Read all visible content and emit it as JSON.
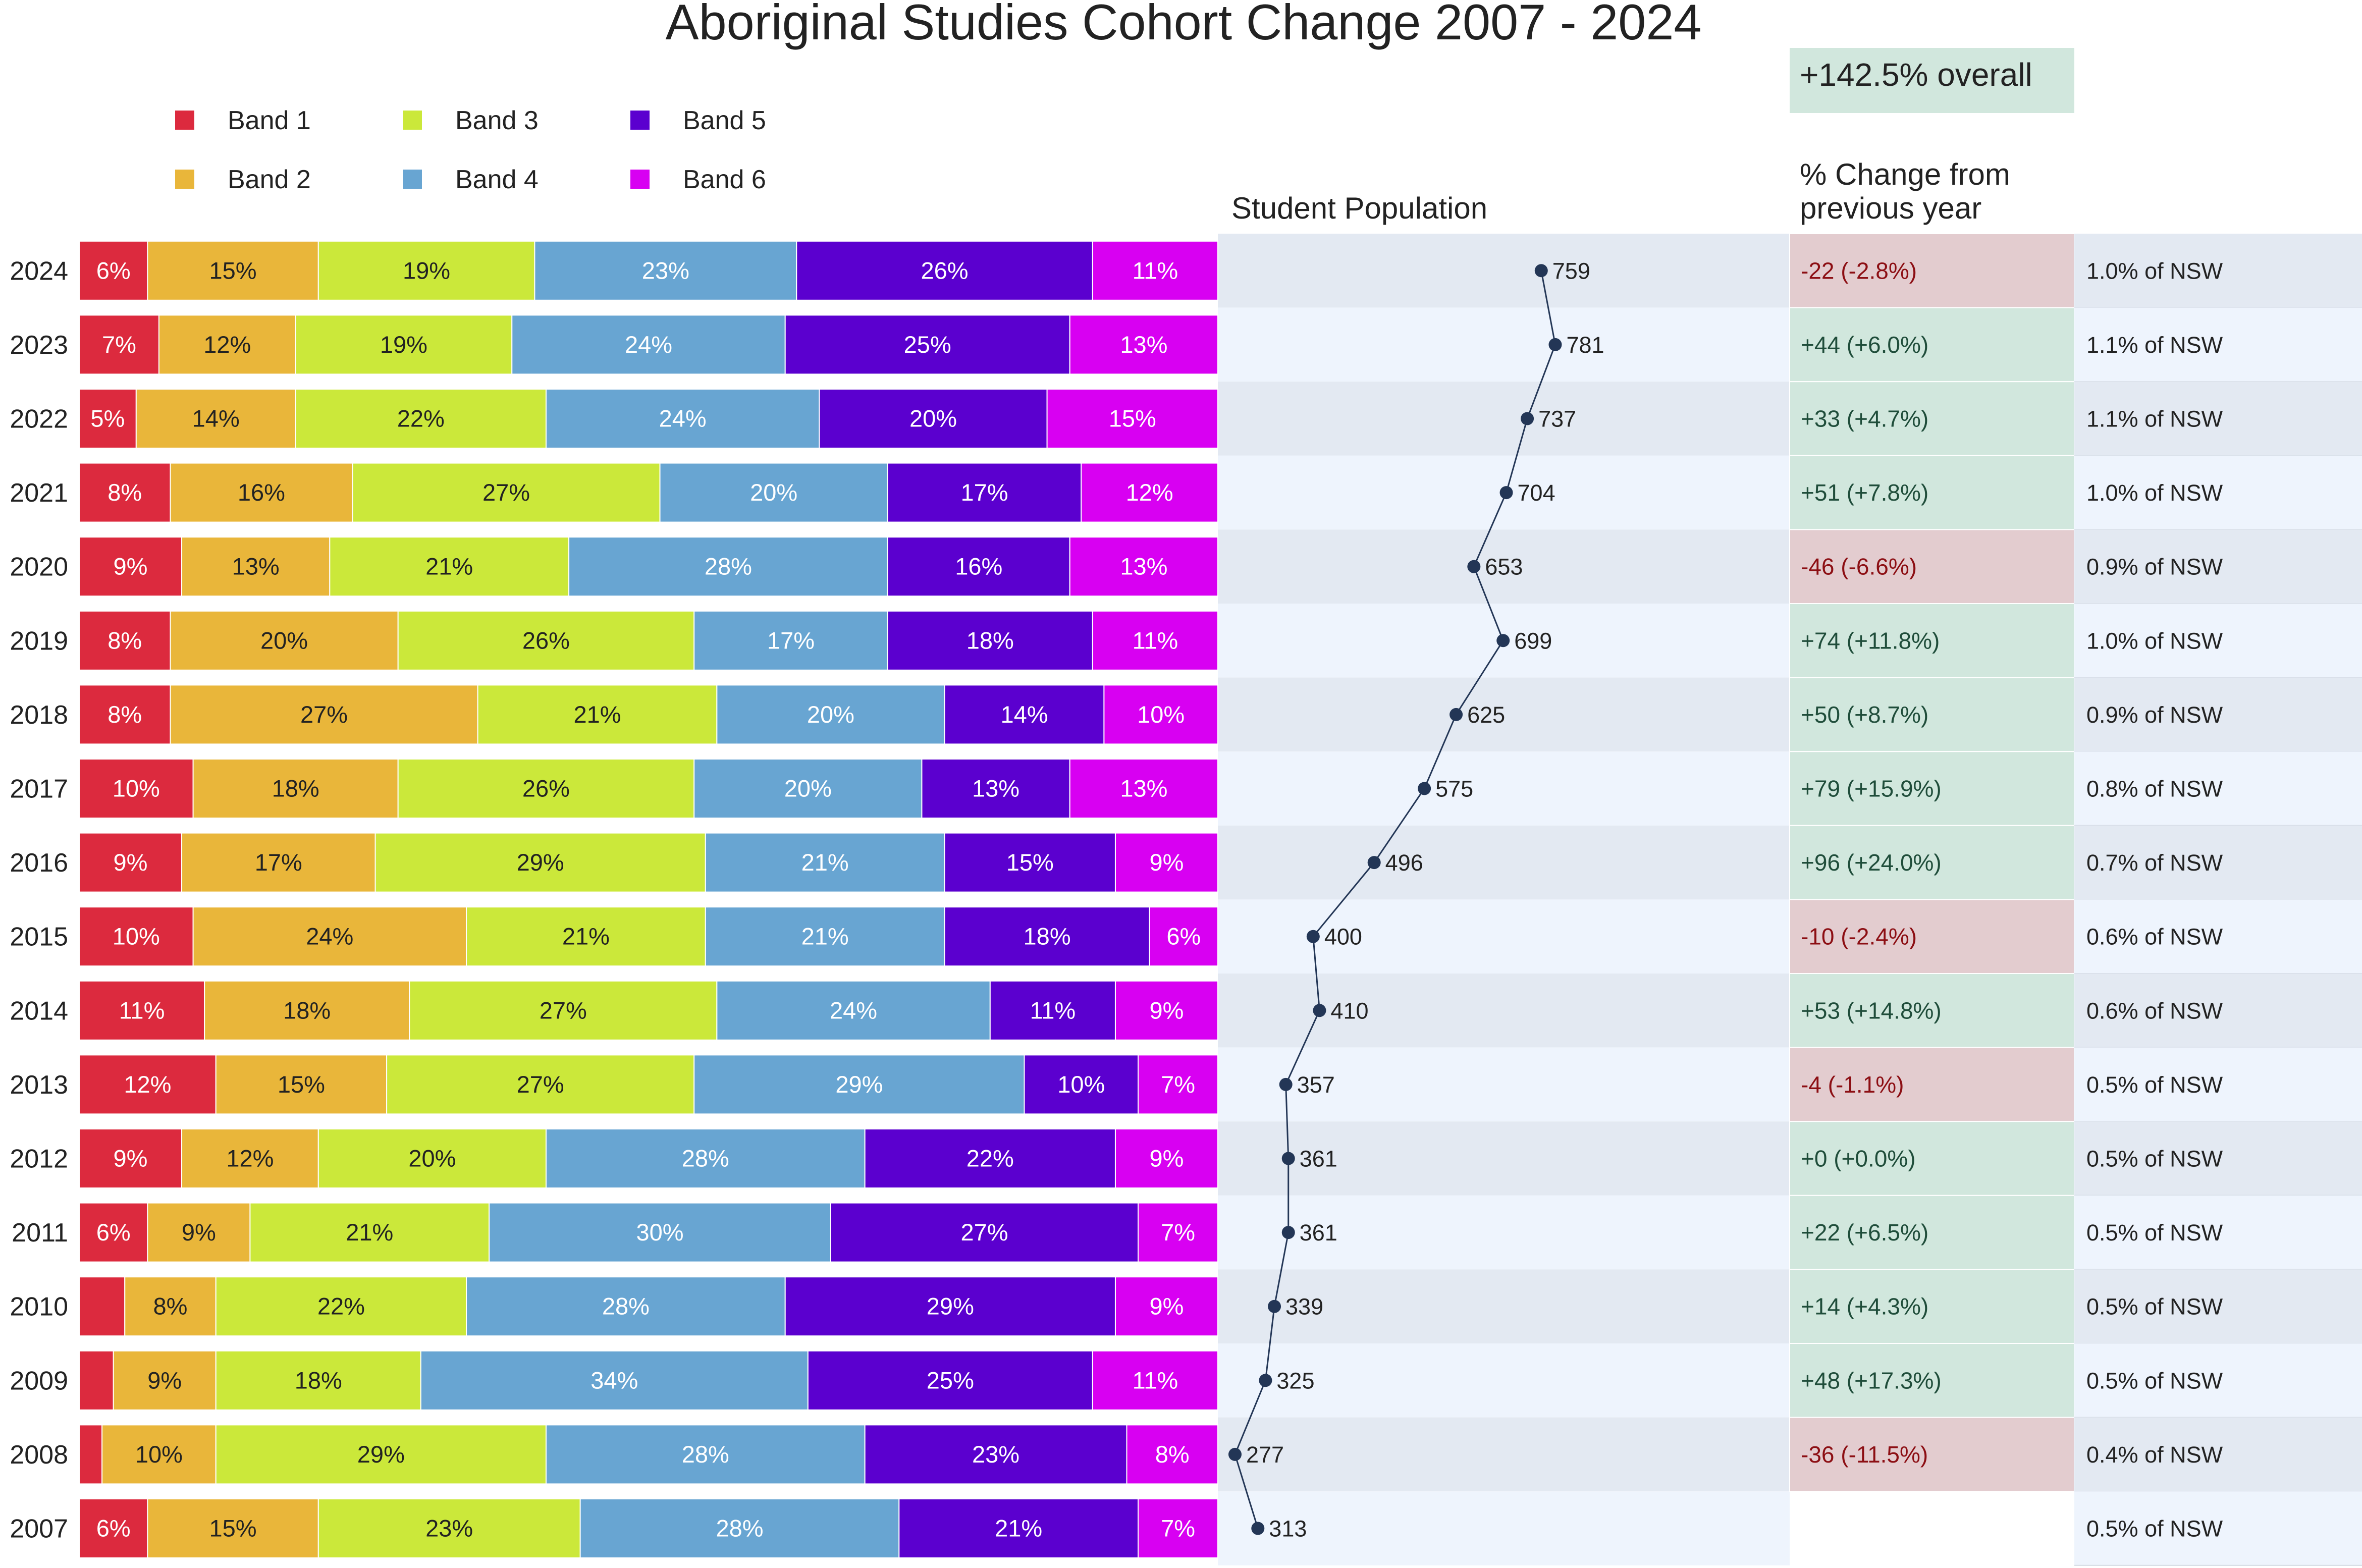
{
  "chart_data": {
    "type": "bar",
    "stacked": true,
    "orientation": "horizontal",
    "normalized_percent": true,
    "title": "Aboriginal Studies Cohort Change 2007 - 2024",
    "overall_change": "+142.5% overall",
    "population_header": "Student Population",
    "change_header": [
      "% Change from",
      "previous year"
    ],
    "legend_position": "top-left",
    "bands": [
      "Band 1",
      "Band 2",
      "Band 3",
      "Band 4",
      "Band 5",
      "Band 6"
    ],
    "colors": {
      "band_colors": [
        "#dc2a3e",
        "#e9b63a",
        "#cbe83a",
        "#68a5d2",
        "#5b00cf",
        "#d800f2"
      ],
      "label_colors": [
        "#ffffff",
        "#222222",
        "#222222",
        "#ffffff",
        "#ffffff",
        "#ffffff"
      ],
      "pop_line": "#233656",
      "pop_bg_dark": "#e3e9f2",
      "pop_bg_light": "#eef4fd",
      "pos_bg": "#d1e7dd",
      "pos_text": "#1f4d3a",
      "neg_bg": "#e3cccf",
      "neg_text": "#8c0e13"
    },
    "pop_axis_min": 250,
    "pop_axis_max": 1150,
    "rows": [
      {
        "year": "2024",
        "shares": [
          6,
          15,
          19,
          23,
          26,
          11
        ],
        "labels": [
          "6%",
          "15%",
          "19%",
          "23%",
          "26%",
          "11%"
        ],
        "population": 759,
        "pop_label": "759",
        "change": "-22  (-2.8%)",
        "change_sign": "neg",
        "nsw": "1.0% of NSW"
      },
      {
        "year": "2023",
        "shares": [
          7,
          12,
          19,
          24,
          25,
          13
        ],
        "labels": [
          "7%",
          "12%",
          "19%",
          "24%",
          "25%",
          "13%"
        ],
        "population": 781,
        "pop_label": "781",
        "change": "+44  (+6.0%)",
        "change_sign": "pos",
        "nsw": "1.1% of NSW"
      },
      {
        "year": "2022",
        "shares": [
          5,
          14,
          22,
          24,
          20,
          15
        ],
        "labels": [
          "5%",
          "14%",
          "22%",
          "24%",
          "20%",
          "15%"
        ],
        "population": 737,
        "pop_label": "737",
        "change": "+33  (+4.7%)",
        "change_sign": "pos",
        "nsw": "1.1% of NSW"
      },
      {
        "year": "2021",
        "shares": [
          8,
          16,
          27,
          20,
          17,
          12
        ],
        "labels": [
          "8%",
          "16%",
          "27%",
          "20%",
          "17%",
          "12%"
        ],
        "population": 704,
        "pop_label": "704",
        "change": "+51  (+7.8%)",
        "change_sign": "pos",
        "nsw": "1.0% of NSW"
      },
      {
        "year": "2020",
        "shares": [
          9,
          13,
          21,
          28,
          16,
          13
        ],
        "labels": [
          "9%",
          "13%",
          "21%",
          "28%",
          "16%",
          "13%"
        ],
        "population": 653,
        "pop_label": "653",
        "change": "-46  (-6.6%)",
        "change_sign": "neg",
        "nsw": "0.9% of NSW"
      },
      {
        "year": "2019",
        "shares": [
          8,
          20,
          26,
          17,
          18,
          11
        ],
        "labels": [
          "8%",
          "20%",
          "26%",
          "17%",
          "18%",
          "11%"
        ],
        "population": 699,
        "pop_label": "699",
        "change": "+74  (+11.8%)",
        "change_sign": "pos",
        "nsw": "1.0% of NSW"
      },
      {
        "year": "2018",
        "shares": [
          8,
          27,
          21,
          20,
          14,
          10
        ],
        "labels": [
          "8%",
          "27%",
          "21%",
          "20%",
          "14%",
          "10%"
        ],
        "population": 625,
        "pop_label": "625",
        "change": "+50  (+8.7%)",
        "change_sign": "pos",
        "nsw": "0.9% of NSW"
      },
      {
        "year": "2017",
        "shares": [
          10,
          18,
          26,
          20,
          13,
          13
        ],
        "labels": [
          "10%",
          "18%",
          "26%",
          "20%",
          "13%",
          "13%"
        ],
        "population": 575,
        "pop_label": "575",
        "change": "+79  (+15.9%)",
        "change_sign": "pos",
        "nsw": "0.8% of NSW"
      },
      {
        "year": "2016",
        "shares": [
          9,
          17,
          29,
          21,
          15,
          9
        ],
        "labels": [
          "9%",
          "17%",
          "29%",
          "21%",
          "15%",
          "9%"
        ],
        "population": 496,
        "pop_label": "496",
        "change": "+96  (+24.0%)",
        "change_sign": "pos",
        "nsw": "0.7% of NSW"
      },
      {
        "year": "2015",
        "shares": [
          10,
          24,
          21,
          21,
          18,
          6
        ],
        "labels": [
          "10%",
          "24%",
          "21%",
          "21%",
          "18%",
          "6%"
        ],
        "population": 400,
        "pop_label": "400",
        "change": "-10  (-2.4%)",
        "change_sign": "neg",
        "nsw": "0.6% of NSW"
      },
      {
        "year": "2014",
        "shares": [
          11,
          18,
          27,
          24,
          11,
          9
        ],
        "labels": [
          "11%",
          "18%",
          "27%",
          "24%",
          "11%",
          "9%"
        ],
        "population": 410,
        "pop_label": "410",
        "change": "+53  (+14.8%)",
        "change_sign": "pos",
        "nsw": "0.6% of NSW"
      },
      {
        "year": "2013",
        "shares": [
          12,
          15,
          27,
          29,
          10,
          7
        ],
        "labels": [
          "12%",
          "15%",
          "27%",
          "29%",
          "10%",
          "7%"
        ],
        "population": 357,
        "pop_label": "357",
        "change": "-4  (-1.1%)",
        "change_sign": "neg",
        "nsw": "0.5% of NSW"
      },
      {
        "year": "2012",
        "shares": [
          9,
          12,
          20,
          28,
          22,
          9
        ],
        "labels": [
          "9%",
          "12%",
          "20%",
          "28%",
          "22%",
          "9%"
        ],
        "population": 361,
        "pop_label": "361",
        "change": "+0  (+0.0%)",
        "change_sign": "pos",
        "nsw": "0.5% of NSW"
      },
      {
        "year": "2011",
        "shares": [
          6,
          9,
          21,
          30,
          27,
          7
        ],
        "labels": [
          "6%",
          "9%",
          "21%",
          "30%",
          "27%",
          "7%"
        ],
        "population": 361,
        "pop_label": "361",
        "change": "+22  (+6.5%)",
        "change_sign": "pos",
        "nsw": "0.5% of NSW"
      },
      {
        "year": "2010",
        "shares": [
          4,
          8,
          22,
          28,
          29,
          9
        ],
        "labels": [
          "",
          "8%",
          "22%",
          "28%",
          "29%",
          "9%"
        ],
        "population": 339,
        "pop_label": "339",
        "change": "+14  (+4.3%)",
        "change_sign": "pos",
        "nsw": "0.5% of NSW"
      },
      {
        "year": "2009",
        "shares": [
          3,
          9,
          18,
          34,
          25,
          11
        ],
        "labels": [
          "",
          "9%",
          "18%",
          "34%",
          "25%",
          "11%"
        ],
        "population": 325,
        "pop_label": "325",
        "change": "+48  (+17.3%)",
        "change_sign": "pos",
        "nsw": "0.5% of NSW"
      },
      {
        "year": "2008",
        "shares": [
          2,
          10,
          29,
          28,
          23,
          8
        ],
        "labels": [
          "",
          "10%",
          "29%",
          "28%",
          "23%",
          "8%"
        ],
        "population": 277,
        "pop_label": "277",
        "change": "-36  (-11.5%)",
        "change_sign": "neg",
        "nsw": "0.4% of NSW"
      },
      {
        "year": "2007",
        "shares": [
          6,
          15,
          23,
          28,
          21,
          7
        ],
        "labels": [
          "6%",
          "15%",
          "23%",
          "28%",
          "21%",
          "7%"
        ],
        "population": 313,
        "pop_label": "313",
        "change": "",
        "change_sign": "none",
        "nsw": "0.5% of NSW"
      }
    ]
  }
}
